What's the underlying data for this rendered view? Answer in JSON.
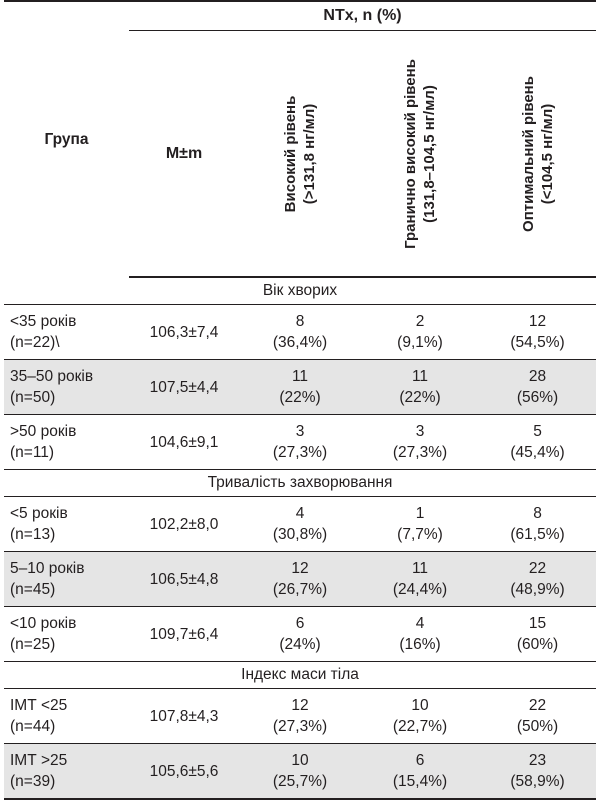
{
  "header": {
    "group_label": "Група",
    "ntx_label": "NTx, n (%)",
    "mean_label": "M±m",
    "col_high": [
      "Високий рівень",
      "(>131,8 нг/мл)"
    ],
    "col_border": [
      "Гранично високий рівень",
      "(131,8–104,5 нг/мл)"
    ],
    "col_optimal": [
      "Оптимальний рівень",
      "(<104,5 нг/мл)"
    ]
  },
  "sections": [
    {
      "title": "Вік хворих",
      "rows": [
        {
          "group": [
            "<35 років",
            "(n=22)\\"
          ],
          "mean": "106,3±7,4",
          "high": [
            "8",
            "(36,4%)"
          ],
          "border": [
            "2",
            "(9,1%)"
          ],
          "optimal": [
            "12",
            "(54,5%)"
          ],
          "shaded": false
        },
        {
          "group": [
            "35–50 років",
            "(n=50)"
          ],
          "mean": "107,5±4,4",
          "high": [
            "11",
            "(22%)"
          ],
          "border": [
            "11",
            "(22%)"
          ],
          "optimal": [
            "28",
            "(56%)"
          ],
          "shaded": true
        },
        {
          "group": [
            ">50 років",
            "(n=11)"
          ],
          "mean": "104,6±9,1",
          "high": [
            "3",
            "(27,3%)"
          ],
          "border": [
            "3",
            "(27,3%)"
          ],
          "optimal": [
            "5",
            "(45,4%)"
          ],
          "shaded": false
        }
      ]
    },
    {
      "title": "Тривалість захворювання",
      "rows": [
        {
          "group": [
            "<5 років",
            "(n=13)"
          ],
          "mean": "102,2±8,0",
          "high": [
            "4",
            "(30,8%)"
          ],
          "border": [
            "1",
            "(7,7%)"
          ],
          "optimal": [
            "8",
            "(61,5%)"
          ],
          "shaded": false
        },
        {
          "group": [
            "5–10 років",
            "(n=45)"
          ],
          "mean": "106,5±4,8",
          "high": [
            "12",
            "(26,7%)"
          ],
          "border": [
            "11",
            "(24,4%)"
          ],
          "optimal": [
            "22",
            "(48,9%)"
          ],
          "shaded": true
        },
        {
          "group": [
            "<10 років",
            "(n=25)"
          ],
          "mean": "109,7±6,4",
          "high": [
            "6",
            "(24%)"
          ],
          "border": [
            "4",
            "(16%)"
          ],
          "optimal": [
            "15",
            "(60%)"
          ],
          "shaded": false
        }
      ]
    },
    {
      "title": "Індекс маси тіла",
      "rows": [
        {
          "group": [
            "ІМТ <25",
            "(n=44)"
          ],
          "mean": "107,8±4,3",
          "high": [
            "12",
            "(27,3%)"
          ],
          "border": [
            "10",
            "(22,7%)"
          ],
          "optimal": [
            "22",
            "(50%)"
          ],
          "shaded": false
        },
        {
          "group": [
            "ІМТ >25",
            "(n=39)"
          ],
          "mean": "105,6±5,6",
          "high": [
            "10",
            "(25,7%)"
          ],
          "border": [
            "6",
            "(15,4%)"
          ],
          "optimal": [
            "23",
            "(58,9%)"
          ],
          "shaded": true
        }
      ]
    }
  ],
  "colors": {
    "shade": "#e5e5e5",
    "text": "#231f20",
    "rule": "#231f20"
  }
}
